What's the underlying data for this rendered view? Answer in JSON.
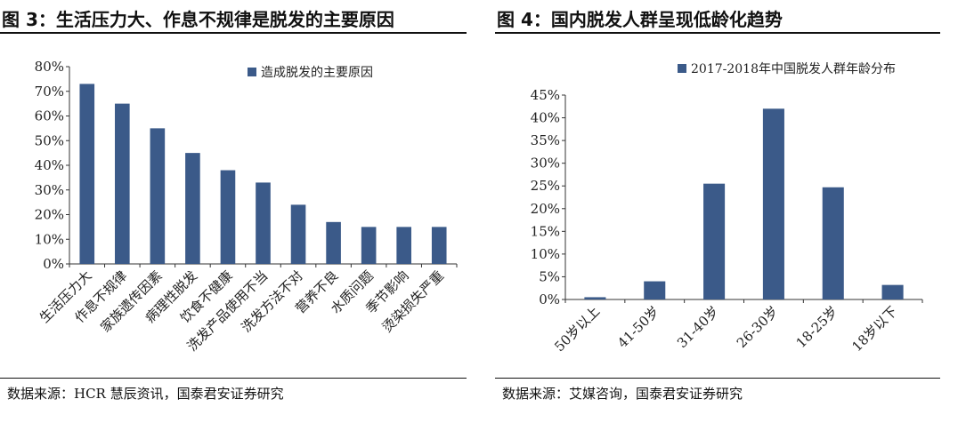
{
  "left_panel": {
    "title": "图 3：生活压力大、作息不规律是脱发的主要原因",
    "source": "数据来源：HCR 慧辰资讯，国泰君安证券研究"
  },
  "right_panel": {
    "title": "图 4：国内脱发人群呈现低龄化趋势",
    "source": "数据来源：艾媒咨询，国泰君安证券研究"
  },
  "chart_data": [
    {
      "type": "bar",
      "categories": [
        "生活压力大",
        "作息不规律",
        "家族遗传因素",
        "病理性脱发",
        "饮食不健康",
        "洗发产品使用不当",
        "洗发方法不对",
        "营养不良",
        "水质问题",
        "季节影响",
        "烫染损失严重"
      ],
      "series": [
        {
          "name": "造成脱发的主要原因",
          "values": [
            73,
            65,
            55,
            45,
            38,
            33,
            24,
            17,
            15,
            15,
            15
          ]
        }
      ],
      "ylim": [
        0,
        80
      ],
      "yticks": [
        "0%",
        "10%",
        "20%",
        "30%",
        "40%",
        "50%",
        "60%",
        "70%",
        "80%"
      ],
      "legend": "top-right",
      "grid": false,
      "bar_color": "#3b5a89"
    },
    {
      "type": "bar",
      "categories": [
        "50岁以上",
        "41-50岁",
        "31-40岁",
        "26-30岁",
        "18-25岁",
        "18岁以下"
      ],
      "series": [
        {
          "name": "2017-2018年中国脱发人群年龄分布",
          "values": [
            0.5,
            4,
            25.5,
            42,
            24.7,
            3.2
          ]
        }
      ],
      "ylim": [
        0,
        45
      ],
      "yticks": [
        "0%",
        "5%",
        "10%",
        "15%",
        "20%",
        "25%",
        "30%",
        "35%",
        "40%",
        "45%"
      ],
      "legend": "top",
      "grid": false,
      "bar_color": "#3b5a89"
    }
  ]
}
